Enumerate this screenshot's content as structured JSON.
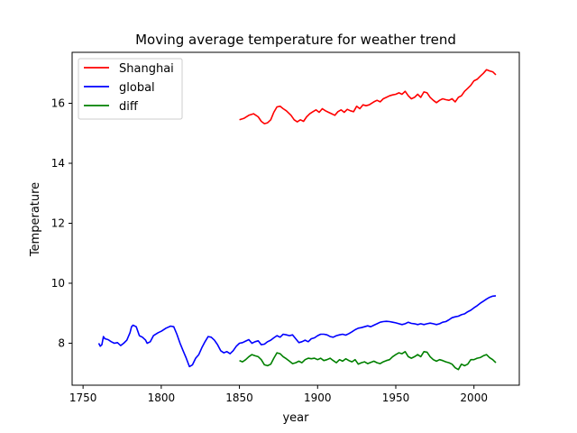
{
  "chart_data": {
    "type": "line",
    "title": "Moving average temperature for weather trend",
    "xlabel": "year",
    "ylabel": "Temperature",
    "xlim": [
      1743,
      2029
    ],
    "ylim": [
      6.6,
      17.7
    ],
    "xticks": [
      1750,
      1800,
      1850,
      1900,
      1950,
      2000
    ],
    "yticks": [
      8,
      10,
      12,
      14,
      16
    ],
    "grid": false,
    "legend_position": "upper-left",
    "series": [
      {
        "name": "Shanghai",
        "color": "#ff0000",
        "points": [
          [
            1850,
            15.45
          ],
          [
            1853,
            15.5
          ],
          [
            1856,
            15.6
          ],
          [
            1859,
            15.65
          ],
          [
            1862,
            15.55
          ],
          [
            1864,
            15.4
          ],
          [
            1866,
            15.32
          ],
          [
            1868,
            15.35
          ],
          [
            1870,
            15.45
          ],
          [
            1872,
            15.7
          ],
          [
            1874,
            15.88
          ],
          [
            1876,
            15.9
          ],
          [
            1878,
            15.82
          ],
          [
            1880,
            15.75
          ],
          [
            1883,
            15.6
          ],
          [
            1885,
            15.45
          ],
          [
            1887,
            15.38
          ],
          [
            1889,
            15.45
          ],
          [
            1891,
            15.4
          ],
          [
            1893,
            15.55
          ],
          [
            1895,
            15.65
          ],
          [
            1897,
            15.72
          ],
          [
            1899,
            15.78
          ],
          [
            1901,
            15.7
          ],
          [
            1903,
            15.82
          ],
          [
            1905,
            15.75
          ],
          [
            1907,
            15.7
          ],
          [
            1909,
            15.65
          ],
          [
            1911,
            15.6
          ],
          [
            1913,
            15.72
          ],
          [
            1915,
            15.78
          ],
          [
            1917,
            15.7
          ],
          [
            1919,
            15.8
          ],
          [
            1921,
            15.75
          ],
          [
            1923,
            15.72
          ],
          [
            1925,
            15.9
          ],
          [
            1927,
            15.82
          ],
          [
            1929,
            15.95
          ],
          [
            1931,
            15.92
          ],
          [
            1933,
            15.95
          ],
          [
            1936,
            16.05
          ],
          [
            1938,
            16.1
          ],
          [
            1940,
            16.05
          ],
          [
            1942,
            16.15
          ],
          [
            1944,
            16.2
          ],
          [
            1946,
            16.25
          ],
          [
            1948,
            16.28
          ],
          [
            1950,
            16.3
          ],
          [
            1952,
            16.35
          ],
          [
            1954,
            16.3
          ],
          [
            1956,
            16.4
          ],
          [
            1958,
            16.25
          ],
          [
            1960,
            16.15
          ],
          [
            1962,
            16.2
          ],
          [
            1964,
            16.3
          ],
          [
            1966,
            16.2
          ],
          [
            1968,
            16.38
          ],
          [
            1970,
            16.35
          ],
          [
            1972,
            16.2
          ],
          [
            1974,
            16.1
          ],
          [
            1976,
            16.02
          ],
          [
            1978,
            16.1
          ],
          [
            1980,
            16.15
          ],
          [
            1982,
            16.12
          ],
          [
            1984,
            16.1
          ],
          [
            1986,
            16.15
          ],
          [
            1988,
            16.05
          ],
          [
            1990,
            16.2
          ],
          [
            1992,
            16.25
          ],
          [
            1994,
            16.4
          ],
          [
            1996,
            16.5
          ],
          [
            1998,
            16.6
          ],
          [
            2000,
            16.75
          ],
          [
            2002,
            16.8
          ],
          [
            2004,
            16.9
          ],
          [
            2006,
            17.0
          ],
          [
            2008,
            17.12
          ],
          [
            2010,
            17.08
          ],
          [
            2012,
            17.05
          ],
          [
            2014,
            16.95
          ]
        ]
      },
      {
        "name": "global",
        "color": "#0000ff",
        "points": [
          [
            1760,
            8.0
          ],
          [
            1761,
            7.9
          ],
          [
            1762,
            7.95
          ],
          [
            1763,
            8.22
          ],
          [
            1764,
            8.15
          ],
          [
            1766,
            8.12
          ],
          [
            1768,
            8.05
          ],
          [
            1770,
            8.0
          ],
          [
            1772,
            8.02
          ],
          [
            1774,
            7.92
          ],
          [
            1776,
            8.0
          ],
          [
            1778,
            8.1
          ],
          [
            1780,
            8.35
          ],
          [
            1781,
            8.55
          ],
          [
            1782,
            8.6
          ],
          [
            1784,
            8.55
          ],
          [
            1786,
            8.25
          ],
          [
            1788,
            8.2
          ],
          [
            1790,
            8.1
          ],
          [
            1791,
            8.0
          ],
          [
            1793,
            8.05
          ],
          [
            1795,
            8.25
          ],
          [
            1798,
            8.35
          ],
          [
            1800,
            8.4
          ],
          [
            1803,
            8.5
          ],
          [
            1806,
            8.57
          ],
          [
            1808,
            8.55
          ],
          [
            1810,
            8.3
          ],
          [
            1812,
            8.0
          ],
          [
            1814,
            7.75
          ],
          [
            1816,
            7.5
          ],
          [
            1818,
            7.22
          ],
          [
            1820,
            7.28
          ],
          [
            1822,
            7.5
          ],
          [
            1824,
            7.62
          ],
          [
            1826,
            7.85
          ],
          [
            1828,
            8.05
          ],
          [
            1830,
            8.22
          ],
          [
            1832,
            8.2
          ],
          [
            1834,
            8.1
          ],
          [
            1836,
            7.95
          ],
          [
            1838,
            7.75
          ],
          [
            1840,
            7.68
          ],
          [
            1842,
            7.72
          ],
          [
            1844,
            7.65
          ],
          [
            1846,
            7.75
          ],
          [
            1848,
            7.9
          ],
          [
            1850,
            8.0
          ],
          [
            1852,
            8.02
          ],
          [
            1854,
            8.07
          ],
          [
            1856,
            8.12
          ],
          [
            1858,
            8.0
          ],
          [
            1860,
            8.05
          ],
          [
            1862,
            8.08
          ],
          [
            1864,
            7.95
          ],
          [
            1866,
            7.97
          ],
          [
            1868,
            8.05
          ],
          [
            1870,
            8.1
          ],
          [
            1872,
            8.18
          ],
          [
            1874,
            8.25
          ],
          [
            1876,
            8.2
          ],
          [
            1878,
            8.3
          ],
          [
            1880,
            8.28
          ],
          [
            1882,
            8.25
          ],
          [
            1884,
            8.28
          ],
          [
            1886,
            8.15
          ],
          [
            1888,
            8.02
          ],
          [
            1890,
            8.05
          ],
          [
            1892,
            8.1
          ],
          [
            1894,
            8.05
          ],
          [
            1896,
            8.15
          ],
          [
            1898,
            8.18
          ],
          [
            1900,
            8.25
          ],
          [
            1902,
            8.3
          ],
          [
            1904,
            8.3
          ],
          [
            1906,
            8.28
          ],
          [
            1908,
            8.22
          ],
          [
            1910,
            8.2
          ],
          [
            1912,
            8.25
          ],
          [
            1914,
            8.28
          ],
          [
            1916,
            8.3
          ],
          [
            1918,
            8.27
          ],
          [
            1920,
            8.32
          ],
          [
            1922,
            8.38
          ],
          [
            1924,
            8.45
          ],
          [
            1926,
            8.5
          ],
          [
            1928,
            8.52
          ],
          [
            1930,
            8.55
          ],
          [
            1932,
            8.58
          ],
          [
            1934,
            8.55
          ],
          [
            1936,
            8.6
          ],
          [
            1938,
            8.65
          ],
          [
            1940,
            8.7
          ],
          [
            1942,
            8.72
          ],
          [
            1944,
            8.73
          ],
          [
            1946,
            8.72
          ],
          [
            1948,
            8.7
          ],
          [
            1950,
            8.68
          ],
          [
            1952,
            8.65
          ],
          [
            1954,
            8.62
          ],
          [
            1956,
            8.65
          ],
          [
            1958,
            8.7
          ],
          [
            1960,
            8.66
          ],
          [
            1962,
            8.65
          ],
          [
            1964,
            8.62
          ],
          [
            1966,
            8.65
          ],
          [
            1968,
            8.62
          ],
          [
            1970,
            8.65
          ],
          [
            1972,
            8.67
          ],
          [
            1974,
            8.65
          ],
          [
            1976,
            8.62
          ],
          [
            1978,
            8.65
          ],
          [
            1980,
            8.7
          ],
          [
            1982,
            8.72
          ],
          [
            1984,
            8.78
          ],
          [
            1986,
            8.85
          ],
          [
            1988,
            8.88
          ],
          [
            1990,
            8.9
          ],
          [
            1992,
            8.95
          ],
          [
            1994,
            8.98
          ],
          [
            1996,
            9.05
          ],
          [
            1998,
            9.1
          ],
          [
            2000,
            9.18
          ],
          [
            2002,
            9.25
          ],
          [
            2004,
            9.33
          ],
          [
            2006,
            9.4
          ],
          [
            2008,
            9.47
          ],
          [
            2010,
            9.53
          ],
          [
            2012,
            9.57
          ],
          [
            2014,
            9.58
          ]
        ]
      },
      {
        "name": "diff",
        "color": "#008000",
        "points": [
          [
            1850,
            7.42
          ],
          [
            1852,
            7.38
          ],
          [
            1854,
            7.45
          ],
          [
            1856,
            7.55
          ],
          [
            1858,
            7.62
          ],
          [
            1860,
            7.58
          ],
          [
            1862,
            7.55
          ],
          [
            1864,
            7.45
          ],
          [
            1866,
            7.28
          ],
          [
            1868,
            7.25
          ],
          [
            1870,
            7.3
          ],
          [
            1872,
            7.5
          ],
          [
            1874,
            7.68
          ],
          [
            1876,
            7.65
          ],
          [
            1878,
            7.55
          ],
          [
            1880,
            7.48
          ],
          [
            1882,
            7.4
          ],
          [
            1884,
            7.32
          ],
          [
            1886,
            7.35
          ],
          [
            1888,
            7.4
          ],
          [
            1890,
            7.35
          ],
          [
            1892,
            7.45
          ],
          [
            1894,
            7.5
          ],
          [
            1896,
            7.48
          ],
          [
            1898,
            7.5
          ],
          [
            1900,
            7.45
          ],
          [
            1902,
            7.5
          ],
          [
            1904,
            7.42
          ],
          [
            1906,
            7.45
          ],
          [
            1908,
            7.5
          ],
          [
            1910,
            7.42
          ],
          [
            1912,
            7.35
          ],
          [
            1914,
            7.45
          ],
          [
            1916,
            7.4
          ],
          [
            1918,
            7.48
          ],
          [
            1920,
            7.42
          ],
          [
            1922,
            7.38
          ],
          [
            1924,
            7.45
          ],
          [
            1926,
            7.3
          ],
          [
            1928,
            7.35
          ],
          [
            1930,
            7.38
          ],
          [
            1932,
            7.32
          ],
          [
            1934,
            7.36
          ],
          [
            1936,
            7.4
          ],
          [
            1938,
            7.35
          ],
          [
            1940,
            7.32
          ],
          [
            1942,
            7.38
          ],
          [
            1944,
            7.42
          ],
          [
            1946,
            7.45
          ],
          [
            1948,
            7.55
          ],
          [
            1950,
            7.62
          ],
          [
            1952,
            7.68
          ],
          [
            1954,
            7.65
          ],
          [
            1956,
            7.72
          ],
          [
            1958,
            7.55
          ],
          [
            1960,
            7.5
          ],
          [
            1962,
            7.55
          ],
          [
            1964,
            7.62
          ],
          [
            1966,
            7.55
          ],
          [
            1968,
            7.72
          ],
          [
            1970,
            7.7
          ],
          [
            1972,
            7.55
          ],
          [
            1974,
            7.45
          ],
          [
            1976,
            7.4
          ],
          [
            1978,
            7.45
          ],
          [
            1980,
            7.42
          ],
          [
            1982,
            7.38
          ],
          [
            1984,
            7.35
          ],
          [
            1986,
            7.3
          ],
          [
            1988,
            7.18
          ],
          [
            1990,
            7.12
          ],
          [
            1992,
            7.3
          ],
          [
            1994,
            7.25
          ],
          [
            1996,
            7.3
          ],
          [
            1998,
            7.45
          ],
          [
            2000,
            7.45
          ],
          [
            2002,
            7.5
          ],
          [
            2004,
            7.52
          ],
          [
            2006,
            7.58
          ],
          [
            2008,
            7.62
          ],
          [
            2010,
            7.52
          ],
          [
            2012,
            7.45
          ],
          [
            2014,
            7.35
          ]
        ]
      }
    ]
  }
}
